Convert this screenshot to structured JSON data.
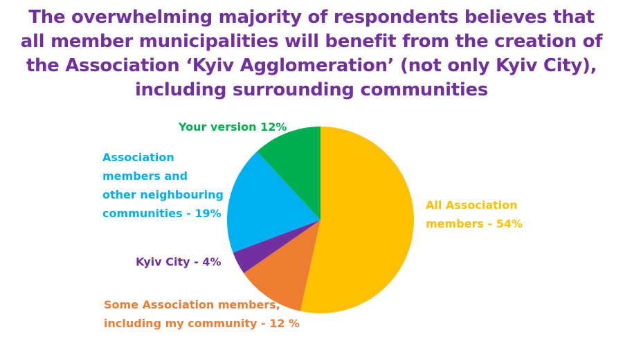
{
  "chart_data": {
    "type": "pie",
    "title": "The overwhelming majority of respondents believes that all member municipalities will benefit from the creation of the Association ‘Kyiv Agglomeration’ (not only Kyiv City), including surrounding communities",
    "categories": [
      "All Association members",
      "Some Association members, including my community",
      "Kyiv City",
      "Association members and other neighbouring communities",
      "Your version"
    ],
    "values": [
      54,
      12,
      4,
      19,
      12
    ],
    "value_labels": [
      "- 54%",
      "- 12 %",
      "- 4%",
      "- 19%",
      "12%"
    ],
    "colors": [
      "#ffc000",
      "#ed7d31",
      "#7030a0",
      "#00b0f0",
      "#00b050"
    ]
  }
}
